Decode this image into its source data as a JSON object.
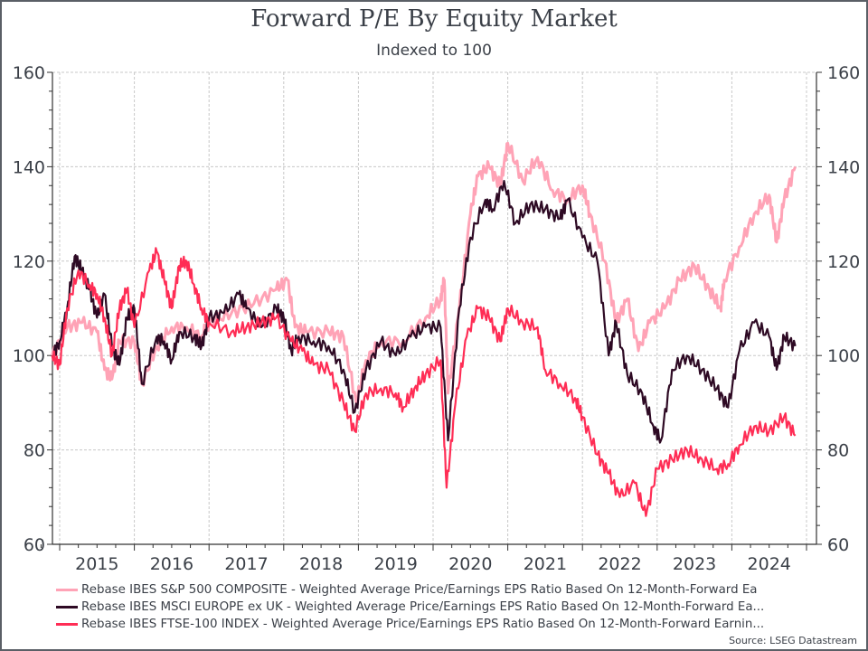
{
  "title": "Forward P/E By Equity Market",
  "subtitle": "Indexed to 100",
  "source": "Source: LSEG Datastream",
  "chart_data": {
    "type": "line",
    "title": "Forward P/E By Equity Market",
    "subtitle": "Indexed to 100",
    "xlabel": "",
    "ylabel": "",
    "ylim": [
      60,
      160
    ],
    "xlim": [
      2014.88,
      2025.1
    ],
    "yticks": [
      "60",
      "80",
      "100",
      "120",
      "140",
      "160"
    ],
    "ytick_values": [
      60,
      80,
      100,
      120,
      140,
      160
    ],
    "xticks": [
      "2015",
      "2016",
      "2017",
      "2018",
      "2019",
      "2020",
      "2021",
      "2022",
      "2023",
      "2024"
    ],
    "grid": true,
    "legend_position": "bottom",
    "series": [
      {
        "name": "Rebase IBES S&P 500 COMPOSITE - Weighted Average Price/Earnings EPS Ratio Based On 12-Month-Forward Ea",
        "color": "#ffa3b6",
        "x": [
          2014.9,
          2015.1,
          2015.3,
          2015.5,
          2015.6,
          2015.7,
          2015.8,
          2016.0,
          2016.1,
          2016.3,
          2016.5,
          2016.7,
          2016.9,
          2017.0,
          2017.3,
          2017.6,
          2017.9,
          2018.05,
          2018.15,
          2018.3,
          2018.6,
          2018.8,
          2018.97,
          2019.1,
          2019.3,
          2019.6,
          2019.9,
          2020.1,
          2020.15,
          2020.2,
          2020.35,
          2020.5,
          2020.6,
          2020.75,
          2020.9,
          2021.0,
          2021.2,
          2021.4,
          2021.6,
          2021.8,
          2022.0,
          2022.1,
          2022.3,
          2022.45,
          2022.6,
          2022.75,
          2022.9,
          2023.1,
          2023.3,
          2023.5,
          2023.7,
          2023.85,
          2023.9,
          2024.1,
          2024.3,
          2024.5,
          2024.6,
          2024.7,
          2024.85
        ],
        "values": [
          100,
          106,
          107,
          105,
          97,
          95,
          103,
          103,
          94,
          102,
          106,
          106,
          104,
          107,
          109,
          111,
          114,
          116,
          106,
          105,
          105,
          104,
          90,
          99,
          103,
          103,
          108,
          112,
          116,
          92,
          110,
          130,
          138,
          140,
          136,
          145,
          137,
          142,
          135,
          133,
          136,
          130,
          120,
          107,
          112,
          101,
          107,
          110,
          116,
          119,
          114,
          110,
          116,
          123,
          130,
          134,
          124,
          133,
          140
        ]
      },
      {
        "name": "Rebase IBES MSCI EUROPE ex UK - Weighted Average Price/Earnings EPS Ratio Based On 12-Month-Forward Ea...",
        "color": "#2e0a24",
        "x": [
          2014.9,
          2015.0,
          2015.1,
          2015.2,
          2015.3,
          2015.4,
          2015.5,
          2015.6,
          2015.7,
          2015.8,
          2015.9,
          2016.0,
          2016.1,
          2016.3,
          2016.4,
          2016.5,
          2016.6,
          2016.8,
          2016.9,
          2017.0,
          2017.2,
          2017.4,
          2017.5,
          2017.7,
          2017.9,
          2018.0,
          2018.1,
          2018.2,
          2018.4,
          2018.6,
          2018.8,
          2018.95,
          2019.1,
          2019.3,
          2019.5,
          2019.7,
          2019.9,
          2020.1,
          2020.2,
          2020.35,
          2020.5,
          2020.7,
          2020.8,
          2020.95,
          2021.1,
          2021.3,
          2021.5,
          2021.7,
          2021.8,
          2022.0,
          2022.2,
          2022.35,
          2022.45,
          2022.6,
          2022.8,
          2022.95,
          2023.05,
          2023.2,
          2023.4,
          2023.6,
          2023.8,
          2023.95,
          2024.1,
          2024.3,
          2024.5,
          2024.6,
          2024.7,
          2024.85
        ],
        "values": [
          100,
          103,
          110,
          121,
          118,
          114,
          108,
          113,
          102,
          98,
          108,
          110,
          94,
          104,
          103,
          99,
          105,
          104,
          102,
          108,
          109,
          113,
          110,
          106,
          110,
          108,
          101,
          104,
          103,
          102,
          97,
          88,
          97,
          103,
          100,
          104,
          106,
          106,
          82,
          110,
          125,
          133,
          131,
          137,
          128,
          132,
          131,
          129,
          133,
          125,
          120,
          100,
          107,
          96,
          92,
          85,
          82,
          97,
          100,
          97,
          93,
          89,
          101,
          107,
          104,
          97,
          104,
          102
        ]
      },
      {
        "name": "Rebase IBES FTSE-100 INDEX - Weighted Average Price/Earnings EPS Ratio Based On 12-Month-Forward Earnin...",
        "color": "#ff2d55",
        "x": [
          2014.9,
          2015.0,
          2015.1,
          2015.25,
          2015.4,
          2015.5,
          2015.6,
          2015.7,
          2015.8,
          2015.9,
          2016.0,
          2016.2,
          2016.3,
          2016.4,
          2016.5,
          2016.6,
          2016.7,
          2016.8,
          2016.9,
          2017.0,
          2017.3,
          2017.5,
          2017.7,
          2017.9,
          2018.1,
          2018.25,
          2018.4,
          2018.6,
          2018.8,
          2018.95,
          2019.1,
          2019.3,
          2019.5,
          2019.6,
          2019.75,
          2019.9,
          2020.1,
          2020.18,
          2020.3,
          2020.45,
          2020.6,
          2020.75,
          2020.9,
          2021.0,
          2021.2,
          2021.4,
          2021.5,
          2021.7,
          2021.9,
          2022.0,
          2022.2,
          2022.35,
          2022.5,
          2022.7,
          2022.85,
          2023.0,
          2023.2,
          2023.4,
          2023.6,
          2023.8,
          2023.95,
          2024.1,
          2024.3,
          2024.5,
          2024.7,
          2024.85
        ],
        "values": [
          100,
          98,
          110,
          118,
          115,
          113,
          108,
          100,
          110,
          114,
          106,
          118,
          122,
          116,
          110,
          119,
          120,
          115,
          110,
          107,
          105,
          106,
          107,
          108,
          103,
          101,
          98,
          97,
          90,
          84,
          92,
          93,
          92,
          89,
          93,
          96,
          99,
          72,
          90,
          104,
          110,
          108,
          103,
          110,
          107,
          106,
          97,
          94,
          91,
          87,
          79,
          75,
          70,
          73,
          66,
          76,
          78,
          80,
          78,
          76,
          77,
          81,
          85,
          84,
          87,
          83
        ]
      }
    ]
  }
}
